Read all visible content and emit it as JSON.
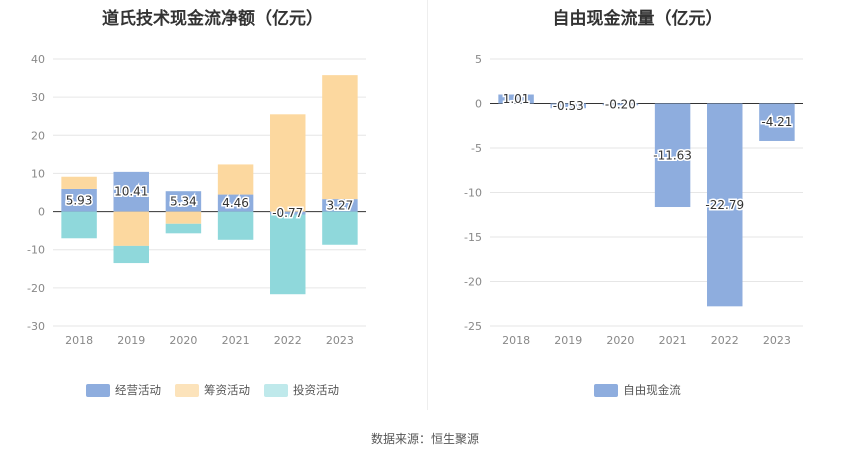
{
  "source_text": "数据来源：恒生聚源",
  "colors": {
    "operating": "#8eadde",
    "financing": "#fcd89f",
    "investing": "#8fd8db",
    "fcf": "#8eadde",
    "grid": "#e6e6e6",
    "axis": "#333333"
  },
  "chart_data": [
    {
      "type": "bar",
      "stacked": true,
      "title": "道氏技术现金流净额（亿元）",
      "categories": [
        "2018",
        "2019",
        "2020",
        "2021",
        "2022",
        "2023"
      ],
      "ylim": [
        -30,
        40
      ],
      "yticks": [
        40,
        30,
        20,
        10,
        0,
        -10,
        -20,
        -30
      ],
      "grid": true,
      "legend_position": "bottom",
      "series": [
        {
          "name": "经营活动",
          "values": [
            5.93,
            10.41,
            5.34,
            4.46,
            -0.77,
            3.27
          ],
          "labels": [
            "5.93",
            "10.41",
            "5.34",
            "4.46",
            "-0.77",
            "3.27"
          ]
        },
        {
          "name": "筹资活动",
          "values": [
            3.2,
            -9.0,
            -3.2,
            7.9,
            25.5,
            32.5
          ]
        },
        {
          "name": "投资活动",
          "values": [
            -7.0,
            -4.5,
            -2.5,
            -7.4,
            -20.9,
            -8.7
          ]
        }
      ]
    },
    {
      "type": "bar",
      "title": "自由现金流量（亿元）",
      "categories": [
        "2018",
        "2019",
        "2020",
        "2021",
        "2022",
        "2023"
      ],
      "ylim": [
        -25,
        5
      ],
      "yticks": [
        5,
        0,
        -5,
        -10,
        -15,
        -20,
        -25
      ],
      "grid": true,
      "legend_position": "bottom",
      "series": [
        {
          "name": "自由现金流",
          "values": [
            1.01,
            -0.53,
            -0.2,
            -11.63,
            -22.79,
            -4.21
          ],
          "labels": [
            "1.01",
            "-0.53",
            "-0.20",
            "-11.63",
            "-22.79",
            "-4.21"
          ]
        }
      ]
    }
  ]
}
